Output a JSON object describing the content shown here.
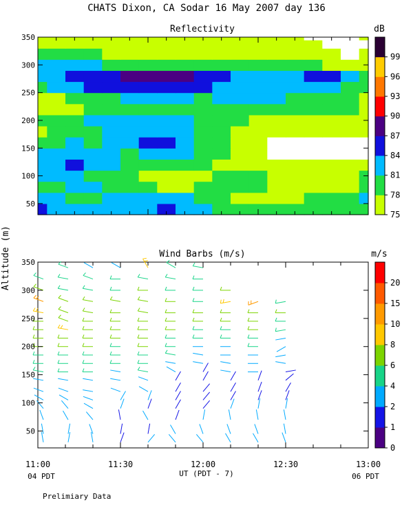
{
  "title": "CHATS Dixon, CA  Sodar  16 May 2007  day 136",
  "shared_ylabel": "Altitude (m)",
  "footer_left": "04 PDT",
  "footer_right": "06 PDT",
  "footer_center": "UT  (PDT - 7)",
  "note": "Prelimiary Data",
  "chart_data": [
    {
      "type": "heatmap",
      "title": "Reflectivity",
      "colorbar_label": "dB",
      "xlim": [
        11.0,
        12.5
      ],
      "ylim": [
        30,
        350
      ],
      "x_ticks": [],
      "y_ticks": [
        "50",
        "100",
        "150",
        "200",
        "250",
        "300",
        "350"
      ],
      "levels": [
        75,
        78,
        81,
        84,
        87,
        90,
        93,
        96,
        99
      ],
      "level_labels": [
        "75",
        "78",
        "81",
        "84",
        "87",
        "90",
        "93",
        "96",
        "99"
      ],
      "level_colors": [
        "#c8ff00",
        "#22dd44",
        "#00bbff",
        "#1010dd",
        "#4b0082",
        "#ff0000",
        "#ff7800",
        "#ffcc00",
        "#2a0033"
      ],
      "x": [
        11.0,
        11.0833,
        11.1667,
        11.25,
        11.3333,
        11.4167,
        11.5,
        11.5833,
        11.6667,
        11.75,
        11.8333,
        11.9167,
        12.0,
        12.0833,
        12.1667,
        12.25,
        12.3333,
        12.4167,
        12.5
      ],
      "y": [
        40,
        60,
        80,
        100,
        120,
        140,
        160,
        180,
        200,
        220,
        240,
        260,
        280,
        300,
        320,
        340,
        350
      ],
      "z": [
        [
          85,
          83,
          82,
          81,
          81,
          82,
          83,
          84,
          83,
          82,
          80,
          79,
          79,
          78,
          78,
          79,
          80,
          80,
          80
        ],
        [
          82,
          82,
          79,
          80,
          81,
          81,
          82,
          82,
          81,
          80,
          78,
          77,
          77,
          77,
          77,
          79,
          80,
          79,
          81
        ],
        [
          80,
          78,
          81,
          81,
          80,
          79,
          78,
          77,
          77,
          78,
          78,
          79,
          78,
          77,
          77,
          77,
          77,
          76,
          79
        ],
        [
          81,
          83,
          82,
          80,
          79,
          78,
          76,
          76,
          75,
          76,
          78,
          79,
          78,
          77,
          76,
          76,
          76,
          76,
          78
        ],
        [
          82,
          83,
          85,
          82,
          81,
          80,
          79,
          79,
          80,
          79,
          77,
          77,
          76,
          75,
          75,
          75,
          75,
          75,
          75
        ],
        [
          81,
          82,
          83,
          82,
          81,
          80,
          82,
          83,
          82,
          79,
          78,
          76,
          75,
          74,
          74,
          74,
          74,
          74,
          74
        ],
        [
          79,
          80,
          81,
          80,
          81,
          81,
          84,
          85,
          83,
          80,
          78,
          76,
          75,
          74,
          74,
          74,
          74,
          74,
          74
        ],
        [
          77,
          78,
          79,
          80,
          81,
          81,
          82,
          83,
          82,
          80,
          78,
          76,
          76,
          76,
          76,
          76,
          75,
          75,
          75
        ],
        [
          79,
          79,
          80,
          81,
          82,
          82,
          82,
          82,
          81,
          80,
          79,
          78,
          77,
          77,
          77,
          77,
          76,
          76,
          75
        ],
        [
          76,
          76,
          77,
          79,
          80,
          80,
          79,
          80,
          80,
          80,
          80,
          80,
          78,
          78,
          78,
          78,
          78,
          79,
          76
        ],
        [
          76,
          76,
          78,
          79,
          80,
          81,
          82,
          82,
          81,
          80,
          81,
          82,
          81,
          81,
          80,
          80,
          79,
          79,
          76
        ],
        [
          79,
          82,
          83,
          84,
          85,
          86,
          86,
          86,
          85,
          84,
          83,
          82,
          82,
          82,
          82,
          83,
          81,
          79,
          78
        ],
        [
          81,
          83,
          84,
          84,
          86,
          87,
          89,
          88,
          87,
          86,
          84,
          83,
          82,
          82,
          82,
          84,
          85,
          83,
          80
        ],
        [
          81,
          83,
          82,
          81,
          80,
          80,
          80,
          80,
          79,
          78,
          78,
          79,
          79,
          79,
          79,
          78,
          77,
          76,
          77
        ],
        [
          78,
          78,
          78,
          78,
          77,
          77,
          76,
          76,
          76,
          76,
          76,
          76,
          76,
          76,
          76,
          76,
          75,
          74,
          75
        ],
        [
          75,
          76,
          76,
          76,
          77,
          77,
          77,
          76,
          76,
          76,
          76,
          76,
          75,
          75,
          75,
          75,
          74,
          74,
          74
        ],
        [
          76,
          76,
          77,
          77,
          77,
          77,
          77,
          76,
          76,
          76,
          76,
          76,
          75,
          75,
          75,
          74,
          74,
          74,
          75
        ]
      ]
    },
    {
      "type": "scatter",
      "title": "Wind Barbs (m/s)",
      "colorbar_label": "m/s",
      "xlim": [
        11.0,
        13.0
      ],
      "ylim": [
        20,
        350
      ],
      "x_ticks": [
        "11:00",
        "11:30",
        "12:00",
        "12:30",
        "13:00"
      ],
      "y_ticks": [
        "50",
        "100",
        "150",
        "200",
        "250",
        "300",
        "350"
      ],
      "levels": [
        0,
        1,
        2,
        4,
        6,
        8,
        10,
        15,
        20
      ],
      "level_labels": [
        "0",
        "1",
        "2",
        "4",
        "6",
        "8",
        "10",
        "15",
        "20"
      ],
      "level_colors": [
        "#4b0082",
        "#1414e6",
        "#00aaff",
        "#18d488",
        "#7cd400",
        "#ffc800",
        "#ff9a00",
        "#ff5a00",
        "#ff0000"
      ],
      "times": [
        11.0333,
        11.1833,
        11.3333,
        11.5,
        11.6667,
        11.8333,
        12.0,
        12.1667,
        12.3333,
        12.5
      ],
      "altitudes": [
        30,
        45,
        70,
        90,
        105,
        120,
        140,
        155,
        170,
        185,
        200,
        215,
        230,
        245,
        260,
        280,
        300,
        320,
        340
      ],
      "speed": [
        [
          2,
          2,
          2,
          2,
          3,
          3,
          3,
          4,
          5,
          5,
          6,
          6,
          6,
          6,
          8,
          10,
          6,
          5,
          null
        ],
        [
          2,
          2,
          2,
          2,
          3,
          3,
          3,
          4,
          4,
          5,
          6,
          7,
          8,
          7,
          7,
          7,
          5,
          5,
          4
        ],
        [
          2,
          2,
          2,
          2,
          3,
          3,
          3,
          4,
          4,
          5,
          6,
          6,
          6,
          6,
          6,
          6,
          5,
          5,
          3
        ],
        [
          1,
          1,
          1,
          2,
          2,
          2,
          3,
          3,
          4,
          5,
          5,
          6,
          6,
          6,
          6,
          6,
          5,
          4,
          3
        ],
        [
          2,
          1,
          2,
          1,
          2,
          3,
          3,
          4,
          4,
          5,
          6,
          6,
          6,
          7,
          7,
          6,
          6,
          5,
          8
        ],
        [
          2,
          2,
          1,
          1,
          1,
          1,
          1,
          2,
          3,
          4,
          5,
          5,
          6,
          6,
          6,
          6,
          5,
          5,
          4
        ],
        [
          2,
          2,
          2,
          1,
          1,
          1,
          1,
          1,
          2,
          2,
          3,
          4,
          5,
          6,
          6,
          5,
          5,
          4,
          5
        ],
        [
          2,
          2,
          2,
          2,
          1,
          1,
          1,
          2,
          2,
          3,
          3,
          4,
          5,
          6,
          6,
          8,
          6,
          null,
          null
        ],
        [
          2,
          2,
          2,
          2,
          1,
          1,
          1,
          2,
          2,
          3,
          4,
          5,
          6,
          6,
          6,
          10,
          null,
          null,
          null
        ],
        [
          2,
          2,
          2,
          2,
          1,
          1,
          1,
          1,
          2,
          3,
          2,
          3,
          4,
          5,
          6,
          5,
          null,
          null,
          null
        ]
      ],
      "direction": [
        [
          350,
          350,
          340,
          320,
          300,
          290,
          280,
          280,
          270,
          270,
          270,
          270,
          270,
          270,
          280,
          290,
          290,
          290,
          null
        ],
        [
          10,
          10,
          330,
          320,
          300,
          290,
          280,
          270,
          270,
          270,
          270,
          270,
          280,
          290,
          290,
          290,
          280,
          280,
          290
        ],
        [
          350,
          340,
          320,
          300,
          290,
          280,
          280,
          270,
          270,
          270,
          270,
          270,
          270,
          270,
          280,
          280,
          280,
          290,
          300
        ],
        [
          20,
          10,
          350,
          20,
          30,
          290,
          280,
          280,
          270,
          270,
          270,
          270,
          270,
          270,
          270,
          280,
          270,
          270,
          300
        ],
        [
          40,
          10,
          330,
          20,
          20,
          300,
          290,
          280,
          270,
          270,
          270,
          270,
          270,
          270,
          280,
          280,
          270,
          280,
          330
        ],
        [
          320,
          330,
          20,
          30,
          30,
          30,
          30,
          300,
          280,
          280,
          270,
          270,
          270,
          270,
          270,
          270,
          270,
          280,
          300
        ],
        [
          320,
          340,
          10,
          40,
          40,
          40,
          30,
          30,
          280,
          280,
          270,
          270,
          270,
          270,
          270,
          270,
          270,
          270,
          280
        ],
        [
          330,
          340,
          350,
          20,
          30,
          30,
          30,
          280,
          280,
          270,
          270,
          270,
          270,
          270,
          270,
          260,
          270,
          null,
          null
        ],
        [
          330,
          340,
          350,
          10,
          20,
          20,
          20,
          270,
          270,
          270,
          270,
          270,
          270,
          270,
          270,
          250,
          null,
          null,
          null
        ],
        [
          340,
          350,
          350,
          10,
          20,
          30,
          50,
          80,
          280,
          260,
          240,
          260,
          260,
          270,
          270,
          260,
          null,
          null,
          null
        ]
      ]
    }
  ]
}
